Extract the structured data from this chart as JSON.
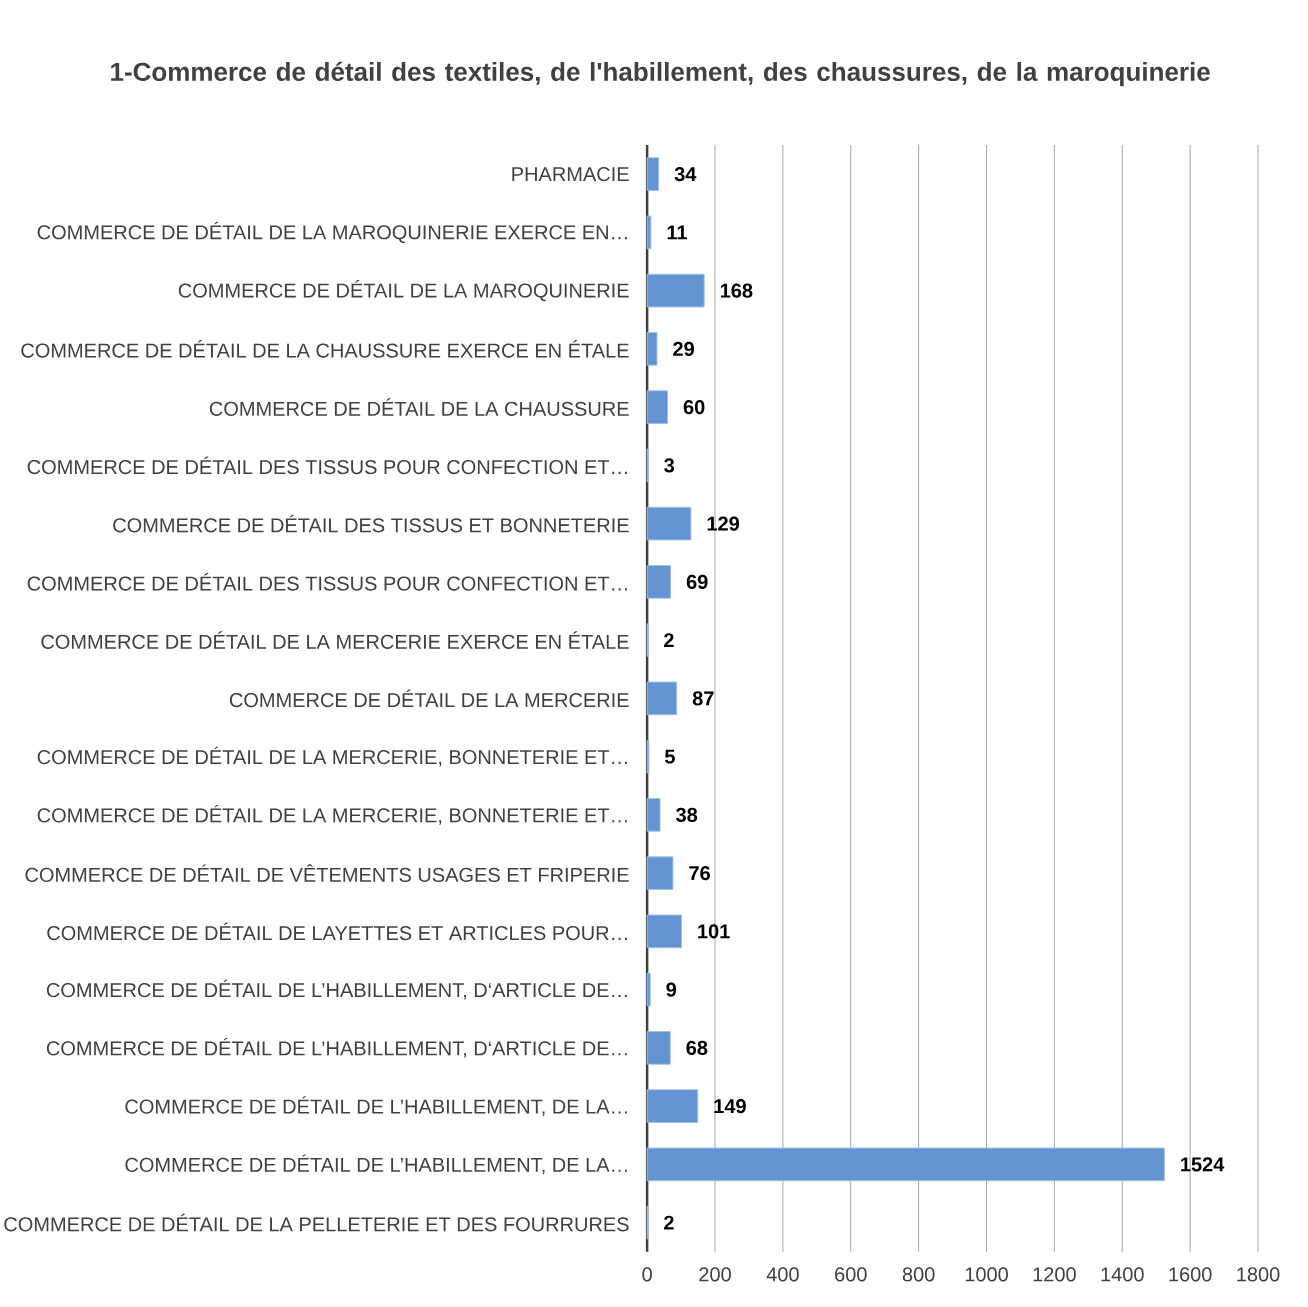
{
  "chart_data": {
    "type": "bar",
    "orientation": "horizontal",
    "title": "1-Commerce de détail des textiles, de l'habillement, des chaussures, de la maroquinerie",
    "categories": [
      "PHARMACIE",
      "COMMERCE DE DÉTAIL DE LA MAROQUINERIE EXERCE EN…",
      "COMMERCE DE DÉTAIL DE LA MAROQUINERIE",
      "COMMERCE DE DÉTAIL DE LA CHAUSSURE EXERCE EN ÉTALE",
      "COMMERCE DE DÉTAIL DE LA CHAUSSURE",
      "COMMERCE DE DÉTAIL DES TISSUS POUR CONFECTION ET…",
      "COMMERCE DE DÉTAIL DES TISSUS ET BONNETERIE",
      "COMMERCE DE DÉTAIL DES TISSUS POUR CONFECTION ET…",
      "COMMERCE DE DÉTAIL DE LA MERCERIE EXERCE EN ÉTALE",
      "COMMERCE DE DÉTAIL DE LA MERCERIE",
      "COMMERCE DE DÉTAIL DE LA MERCERIE, BONNETERIE ET…",
      "COMMERCE DE DÉTAIL DE LA MERCERIE, BONNETERIE ET…",
      "COMMERCE DE DÉTAIL DE VÊTEMENTS USAGES ET FRIPERIE",
      "COMMERCE DE DÉTAIL DE LAYETTES ET ARTICLES POUR…",
      "COMMERCE DE DÉTAIL DE L’HABILLEMENT, D‘ARTICLE DE…",
      "COMMERCE DE DÉTAIL DE L’HABILLEMENT, D‘ARTICLE DE…",
      "COMMERCE DE DÉTAIL DE L’HABILLEMENT, DE LA…",
      "COMMERCE DE DÉTAIL DE L’HABILLEMENT, DE LA…",
      "COMMERCE DE DÉTAIL DE LA PELLETERIE ET DES FOURRURES"
    ],
    "values": [
      34,
      11,
      168,
      29,
      60,
      3,
      129,
      69,
      2,
      87,
      5,
      38,
      76,
      101,
      9,
      68,
      149,
      1524,
      2
    ],
    "color": "#6393d0",
    "data_labels": true,
    "grid": "x",
    "xlim": [
      0,
      1800
    ],
    "xticks": [
      0,
      200,
      400,
      600,
      800,
      1000,
      1200,
      1400,
      1600,
      1800
    ]
  }
}
